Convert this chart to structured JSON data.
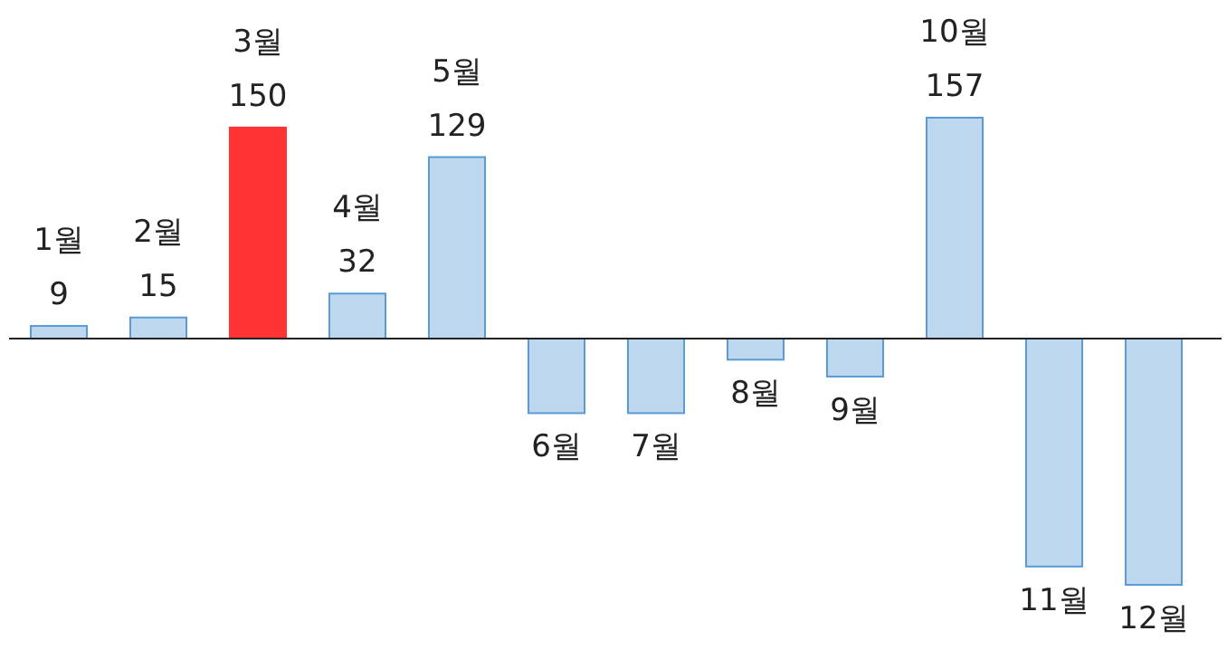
{
  "chart_data": {
    "type": "bar",
    "categories": [
      "1월",
      "2월",
      "3월",
      "4월",
      "5월",
      "6월",
      "7월",
      "8월",
      "9월",
      "10월",
      "11월",
      "12월"
    ],
    "values": [
      9,
      15,
      150,
      32,
      129,
      -53,
      -53,
      -15,
      -27,
      157,
      -162,
      -175
    ],
    "colors": [
      "#bdd7ee",
      "#bdd7ee",
      "#ff3333",
      "#bdd7ee",
      "#bdd7ee",
      "#bdd7ee",
      "#bdd7ee",
      "#bdd7ee",
      "#bdd7ee",
      "#bdd7ee",
      "#bdd7ee",
      "#bdd7ee"
    ],
    "value_labels": [
      "9",
      "15",
      "150",
      "32",
      "129",
      null,
      null,
      null,
      null,
      "157",
      null,
      null
    ]
  }
}
